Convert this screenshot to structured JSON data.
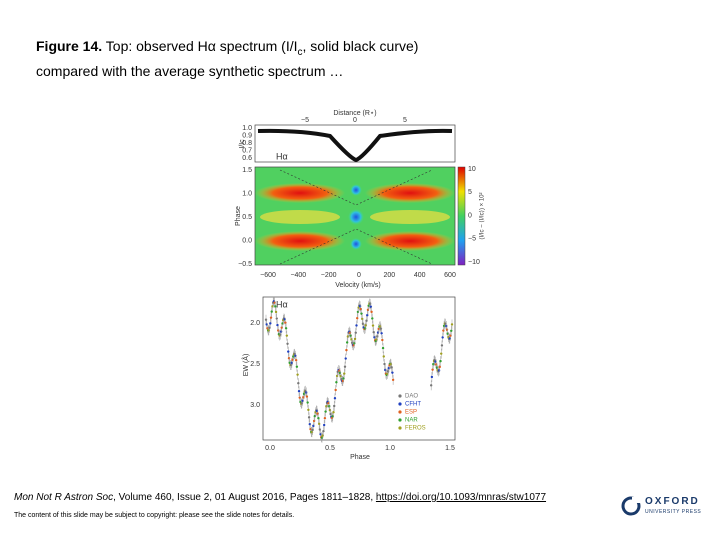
{
  "header": {
    "label": "Figure 14.",
    "line1": "Top: observed Hα spectrum (I/I",
    "subscript": "c",
    "line1_end": ", solid black curve)",
    "line2": "compared with the average synthetic spectrum …"
  },
  "figure": {
    "top_panel": {
      "x_label": "Distance (R⋆)",
      "x_ticks": [
        "−5",
        "0",
        "5"
      ],
      "y_label": "I/Ic",
      "y_ticks": [
        "1.0",
        "0.9",
        "0.8",
        "0.7",
        "0.6"
      ],
      "tag": "Hα"
    },
    "middle_panel": {
      "y_label": "Phase",
      "y_ticks": [
        "1.5",
        "1.0",
        "0.5",
        "0.0",
        "−0.5"
      ],
      "x_label": "Velocity (km/s)",
      "x_ticks": [
        "−600",
        "−400",
        "−200",
        "0",
        "200",
        "400",
        "600"
      ],
      "colorbar_label": "(I/Ic − ⟨I/Ic⟩) × 10²",
      "colorbar_ticks": [
        "10",
        "5",
        "0",
        "−5",
        "−10"
      ]
    },
    "bottom_panel": {
      "tag": "Hα",
      "y_label": "EW (Å)",
      "y_ticks": [
        "2.0",
        "2.5",
        "3.0"
      ],
      "x_label": "Phase",
      "x_ticks": [
        "0.0",
        "0.5",
        "1.0",
        "1.5"
      ],
      "legend": [
        "DAO",
        "CFHT",
        "ESP",
        "NAR",
        "FEROS"
      ]
    }
  },
  "footer": {
    "journal": "Mon Not R Astron Soc",
    "citation": ", Volume 460, Issue 2, 01 August 2016, Pages 1811–1828, ",
    "link": "https://doi.org/10.1093/mnras/stw1077",
    "copyright": "The content of this slide may be subject to copyright: please see the slide notes for details.",
    "logo_main": "OXFORD",
    "logo_sub": "UNIVERSITY PRESS"
  }
}
